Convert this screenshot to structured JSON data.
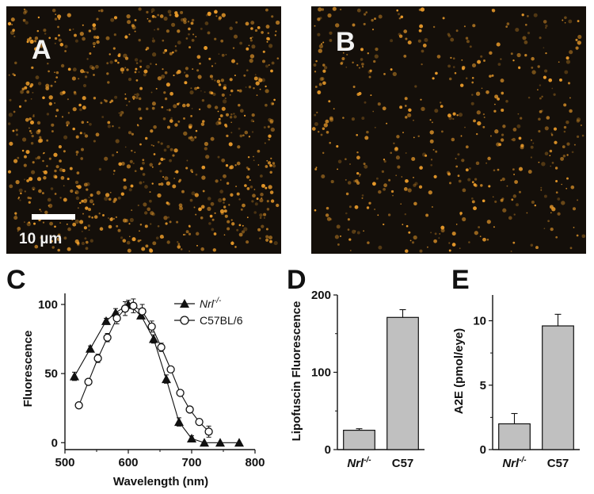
{
  "micrographs": [
    {
      "letter": "A",
      "scale_bar_label": "10 µm"
    },
    {
      "letter": "B"
    }
  ],
  "colors": {
    "micrograph_background": "#140f0a",
    "granule": "#e89a2a",
    "bar_fill": "#c0c0c0",
    "axis": "#111111"
  },
  "chart_data": [
    {
      "panel": "C",
      "type": "line",
      "xlabel": "Wavelength (nm)",
      "ylabel": "Fluorescence",
      "xlim": [
        500,
        800
      ],
      "ylim": [
        -5,
        108
      ],
      "xticks": [
        500,
        600,
        700,
        800
      ],
      "yticks": [
        0,
        50,
        100
      ],
      "legend_position": "top-right",
      "series": [
        {
          "name": "Nrl-/-",
          "marker": "filled-triangle",
          "x": [
            515,
            540,
            565,
            580,
            600,
            620,
            640,
            660,
            680,
            700,
            720,
            745,
            775
          ],
          "y": [
            48,
            68,
            88,
            94,
            100,
            92,
            75,
            46,
            15,
            3,
            0,
            0,
            0
          ],
          "err": [
            3,
            2,
            2,
            3,
            3,
            2,
            3,
            3,
            3,
            2,
            0,
            0,
            0
          ]
        },
        {
          "name": "C57BL/6",
          "marker": "open-circle",
          "x": [
            522,
            537,
            552,
            567,
            582,
            595,
            608,
            622,
            637,
            652,
            667,
            682,
            697,
            712,
            727
          ],
          "y": [
            27,
            44,
            61,
            76,
            90,
            97,
            99,
            95,
            84,
            69,
            53,
            36,
            24,
            15,
            8
          ],
          "err": [
            1,
            2,
            3,
            3,
            4,
            5,
            5,
            5,
            4,
            3,
            2,
            2,
            2,
            2,
            4
          ]
        }
      ]
    },
    {
      "panel": "D",
      "type": "bar",
      "categories": [
        "Nrl-/-",
        "C57"
      ],
      "values": [
        25,
        171
      ],
      "errors": [
        2,
        10
      ],
      "ylabel": "Lipofuscin Fluorescence",
      "ylim": [
        0,
        200
      ],
      "yticks": [
        0,
        100,
        200
      ]
    },
    {
      "panel": "E",
      "type": "bar",
      "categories": [
        "Nrl-/-",
        "C57"
      ],
      "values": [
        2.0,
        9.6
      ],
      "errors": [
        0.8,
        0.9
      ],
      "ylabel": "A2E (pmol/eye)",
      "ylim": [
        0,
        12
      ],
      "yticks": [
        0,
        5,
        10
      ]
    }
  ]
}
